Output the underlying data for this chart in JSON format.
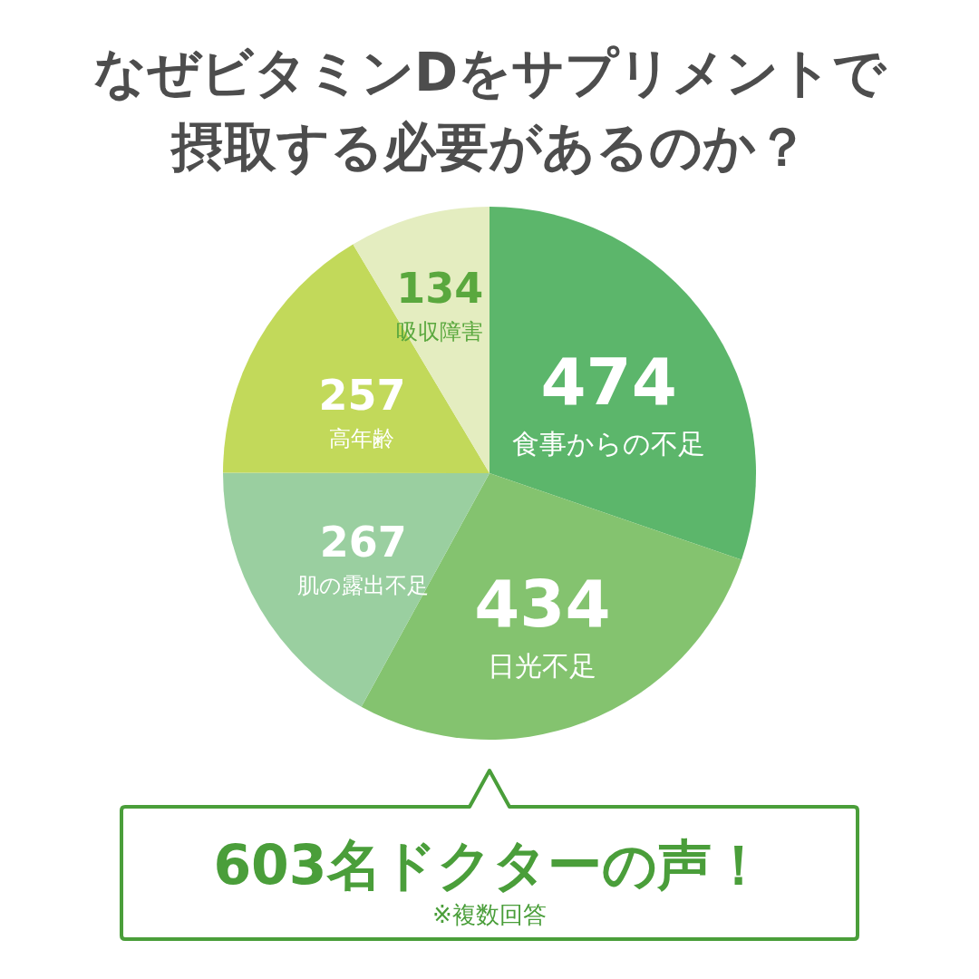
{
  "chart_data": {
    "type": "pie",
    "title": "なぜビタミンDをサプリメントで摂取する必要があるのか？",
    "categories": [
      "食事からの不足",
      "日光不足",
      "肌の露出不足",
      "高年齢",
      "吸収障害"
    ],
    "values": [
      474,
      434,
      267,
      257,
      134
    ],
    "colors": [
      "#5cb66b",
      "#84c36f",
      "#9acfa0",
      "#c2d95a",
      "#e4edc0"
    ],
    "data_labels": true,
    "annotations": [
      "603名ドクターの声！",
      "※複数回答"
    ]
  }
}
